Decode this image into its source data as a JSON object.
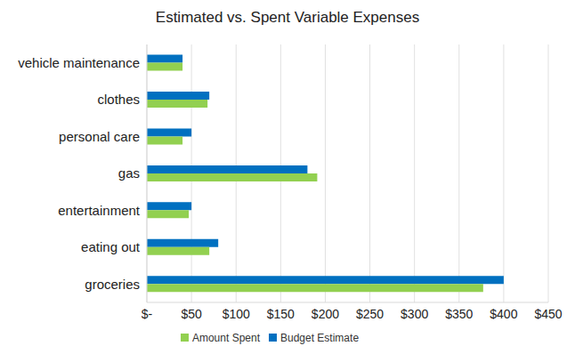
{
  "chart_data": {
    "type": "bar",
    "title": "Estimated vs. Spent Variable Expenses",
    "orientation": "horizontal",
    "categories": [
      "vehicle maintenance",
      "clothes",
      "personal care",
      "gas",
      "entertainment",
      "eating out",
      "groceries"
    ],
    "series": [
      {
        "name": "Budget Estimate",
        "color": "#0070c0",
        "values": [
          40,
          70,
          50,
          180,
          50,
          80,
          400
        ]
      },
      {
        "name": "Amount Spent",
        "color": "#92d050",
        "values": [
          40,
          68,
          40,
          191,
          47,
          70,
          377
        ]
      }
    ],
    "xlim": [
      0,
      450
    ],
    "xticks": [
      {
        "value": 0,
        "label": "$-"
      },
      {
        "value": 50,
        "label": "$50"
      },
      {
        "value": 100,
        "label": "$100"
      },
      {
        "value": 150,
        "label": "$150"
      },
      {
        "value": 200,
        "label": "$200"
      },
      {
        "value": 250,
        "label": "$250"
      },
      {
        "value": 300,
        "label": "$300"
      },
      {
        "value": 350,
        "label": "$350"
      },
      {
        "value": 400,
        "label": "$400"
      },
      {
        "value": 450,
        "label": "$450"
      }
    ],
    "grid": true,
    "legend": "bottom"
  }
}
